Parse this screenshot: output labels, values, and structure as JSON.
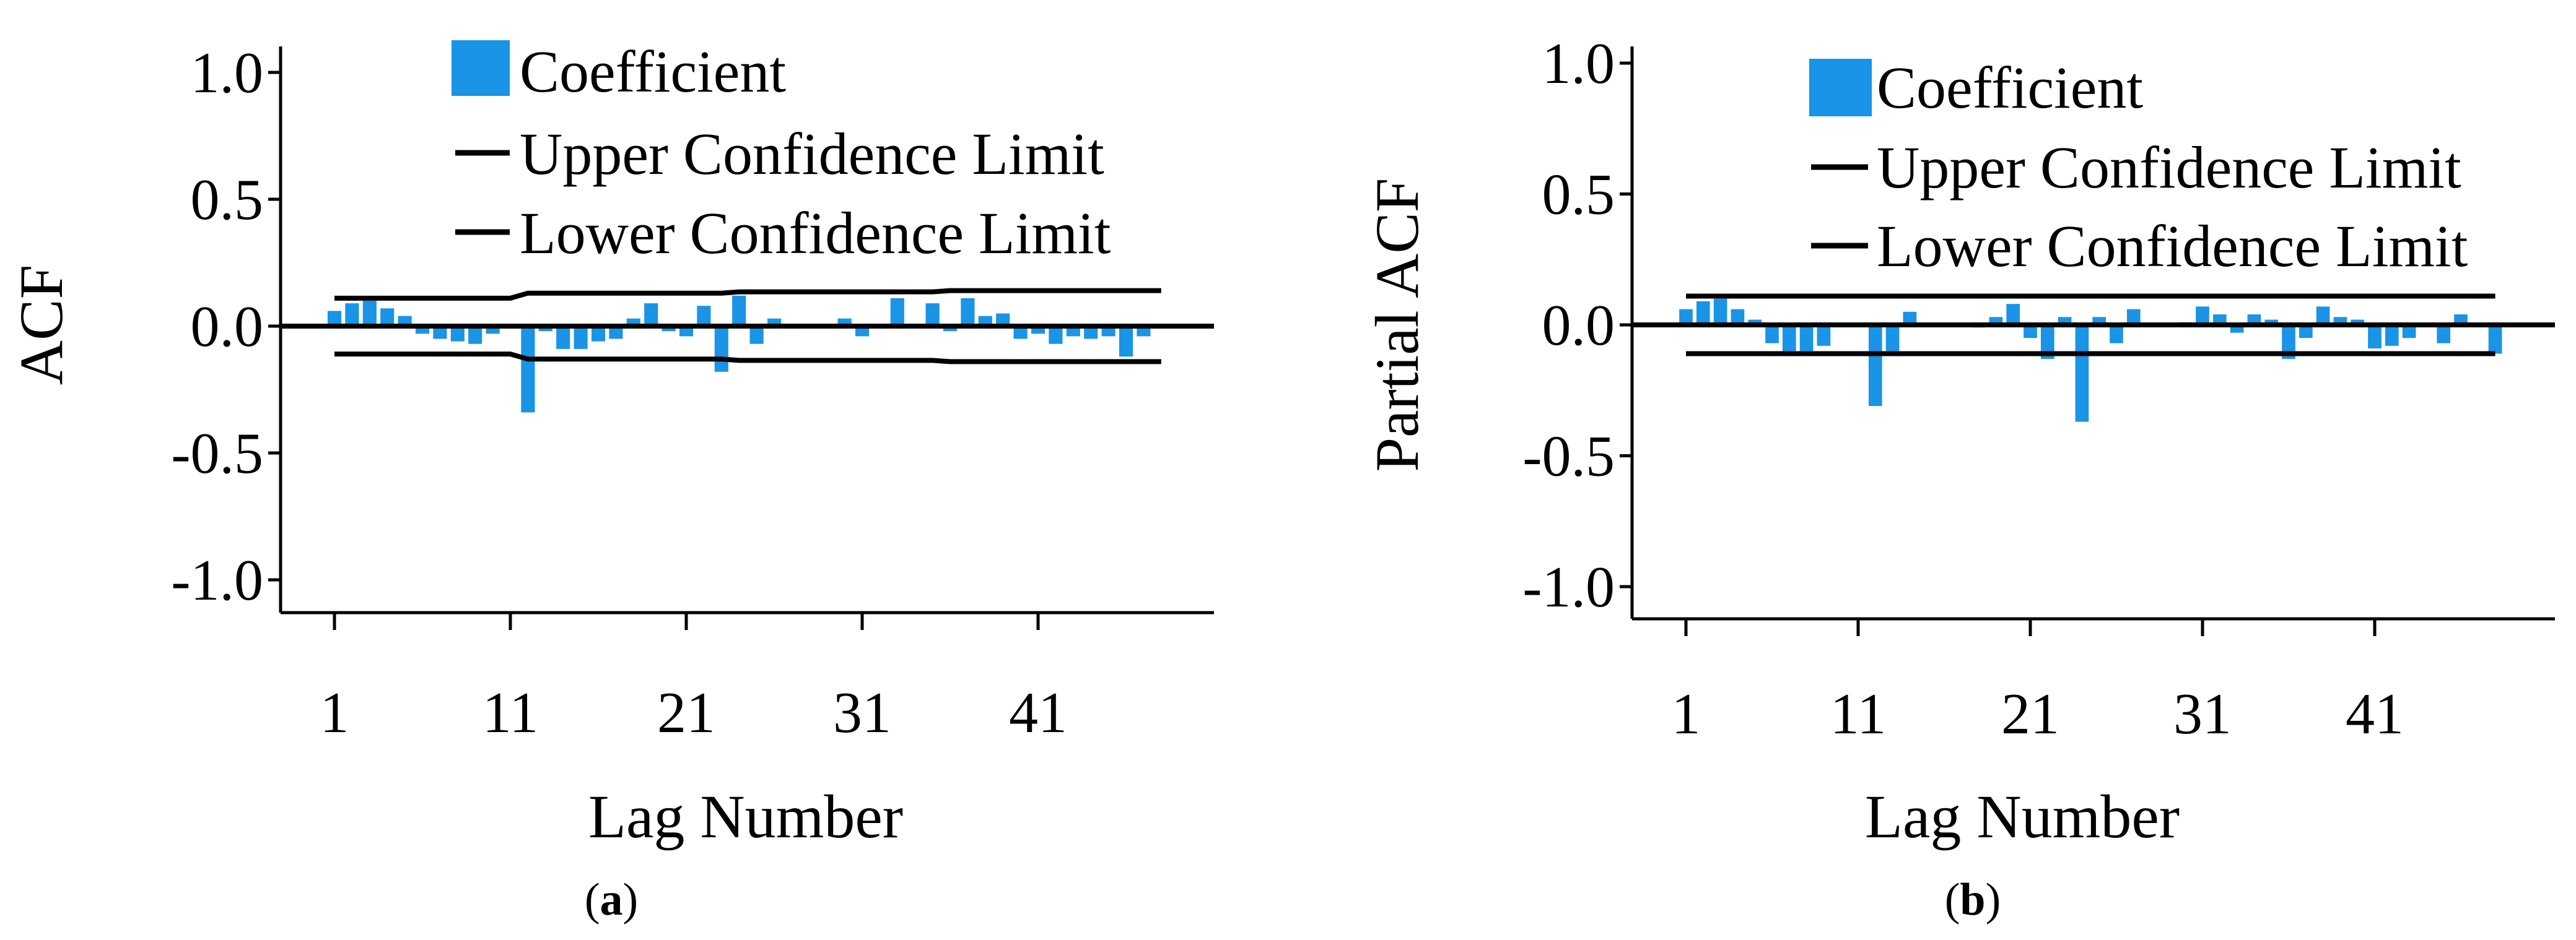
{
  "figure": {
    "captions": [
      {
        "open": "(",
        "letter": "a",
        "close": ")"
      },
      {
        "open": "(",
        "letter": "b",
        "close": ")"
      }
    ]
  },
  "colors": {
    "bar": "#1994e6",
    "line": "#000000"
  },
  "chart_data": [
    {
      "type": "bar",
      "title": "",
      "xlabel": "Lag Number",
      "ylabel": "ACF",
      "ylim": [
        -1.0,
        1.0
      ],
      "xlim": [
        1,
        48
      ],
      "yticks": [
        "1.0",
        "0.5",
        "0.0",
        "-0.5",
        "-1.0"
      ],
      "ytick_values": [
        1.0,
        0.5,
        0.0,
        -0.5,
        -1.0
      ],
      "xticks": [
        "1",
        "11",
        "21",
        "31",
        "41"
      ],
      "xtick_values": [
        1,
        11,
        21,
        31,
        41
      ],
      "legend": {
        "placement": "top",
        "entries": [
          {
            "label": "Coefficient",
            "kind": "bar"
          },
          {
            "label": "Upper Confidence Limit",
            "kind": "line"
          },
          {
            "label": "Lower Confidence Limit",
            "kind": "line"
          }
        ]
      },
      "lags": [
        1,
        2,
        3,
        4,
        5,
        6,
        7,
        8,
        9,
        10,
        11,
        12,
        13,
        14,
        15,
        16,
        17,
        18,
        19,
        20,
        21,
        22,
        23,
        24,
        25,
        26,
        27,
        28,
        29,
        30,
        31,
        32,
        33,
        34,
        35,
        36,
        37,
        38,
        39,
        40,
        41,
        42,
        43,
        44,
        45,
        46,
        47,
        48
      ],
      "series": [
        {
          "name": "Coefficient",
          "values": [
            0.06,
            0.09,
            0.1,
            0.07,
            0.04,
            -0.03,
            -0.05,
            -0.06,
            -0.07,
            -0.03,
            -0.01,
            -0.34,
            -0.02,
            -0.09,
            -0.09,
            -0.06,
            -0.05,
            0.03,
            0.09,
            -0.02,
            -0.04,
            0.08,
            -0.18,
            0.12,
            -0.07,
            0.03,
            -0.01,
            0.0,
            0.0,
            0.03,
            -0.04,
            0.0,
            0.11,
            0.0,
            0.09,
            -0.02,
            0.11,
            0.04,
            0.05,
            -0.05,
            -0.03,
            -0.07,
            -0.04,
            -0.05,
            -0.04,
            -0.12,
            -0.04,
            0.0
          ]
        },
        {
          "name": "Upper Confidence Limit",
          "values": [
            0.11,
            0.11,
            0.11,
            0.11,
            0.11,
            0.11,
            0.11,
            0.11,
            0.11,
            0.11,
            0.11,
            0.13,
            0.13,
            0.13,
            0.13,
            0.13,
            0.13,
            0.13,
            0.13,
            0.13,
            0.13,
            0.13,
            0.13,
            0.135,
            0.135,
            0.135,
            0.135,
            0.135,
            0.135,
            0.135,
            0.135,
            0.135,
            0.135,
            0.135,
            0.135,
            0.14,
            0.14,
            0.14,
            0.14,
            0.14,
            0.14,
            0.14,
            0.14,
            0.14,
            0.14,
            0.14,
            0.14,
            0.14
          ]
        },
        {
          "name": "Lower Confidence Limit",
          "values": [
            -0.11,
            -0.11,
            -0.11,
            -0.11,
            -0.11,
            -0.11,
            -0.11,
            -0.11,
            -0.11,
            -0.11,
            -0.11,
            -0.13,
            -0.13,
            -0.13,
            -0.13,
            -0.13,
            -0.13,
            -0.13,
            -0.13,
            -0.13,
            -0.13,
            -0.13,
            -0.13,
            -0.135,
            -0.135,
            -0.135,
            -0.135,
            -0.135,
            -0.135,
            -0.135,
            -0.135,
            -0.135,
            -0.135,
            -0.135,
            -0.135,
            -0.14,
            -0.14,
            -0.14,
            -0.14,
            -0.14,
            -0.14,
            -0.14,
            -0.14,
            -0.14,
            -0.14,
            -0.14,
            -0.14,
            -0.14
          ]
        }
      ]
    },
    {
      "type": "bar",
      "title": "",
      "xlabel": "Lag Number",
      "ylabel": "Partial ACF",
      "ylim": [
        -1.0,
        1.0
      ],
      "xlim": [
        1,
        48
      ],
      "yticks": [
        "1.0",
        "0.5",
        "0.0",
        "-0.5",
        "-1.0"
      ],
      "ytick_values": [
        1.0,
        0.5,
        0.0,
        -0.5,
        -1.0
      ],
      "xticks": [
        "1",
        "11",
        "21",
        "31",
        "41"
      ],
      "xtick_values": [
        1,
        11,
        21,
        31,
        41
      ],
      "legend": {
        "placement": "top",
        "entries": [
          {
            "label": "Coefficient",
            "kind": "bar"
          },
          {
            "label": "Upper Confidence Limit",
            "kind": "line"
          },
          {
            "label": "Lower Confidence Limit",
            "kind": "line"
          }
        ]
      },
      "lags": [
        1,
        2,
        3,
        4,
        5,
        6,
        7,
        8,
        9,
        10,
        11,
        12,
        13,
        14,
        15,
        16,
        17,
        18,
        19,
        20,
        21,
        22,
        23,
        24,
        25,
        26,
        27,
        28,
        29,
        30,
        31,
        32,
        33,
        34,
        35,
        36,
        37,
        38,
        39,
        40,
        41,
        42,
        43,
        44,
        45,
        46,
        47,
        48
      ],
      "series": [
        {
          "name": "Coefficient",
          "values": [
            0.06,
            0.09,
            0.1,
            0.06,
            0.02,
            -0.07,
            -0.1,
            -0.1,
            -0.08,
            0.0,
            0.0,
            -0.31,
            -0.1,
            0.05,
            0.0,
            0.0,
            0.0,
            -0.01,
            0.03,
            0.08,
            -0.05,
            -0.13,
            0.03,
            -0.37,
            0.03,
            -0.07,
            0.06,
            0.0,
            0.0,
            0.01,
            0.07,
            0.04,
            -0.03,
            0.04,
            0.02,
            -0.13,
            -0.05,
            0.07,
            0.03,
            0.02,
            -0.09,
            -0.08,
            -0.05,
            0.0,
            -0.07,
            0.04,
            0.0,
            -0.11
          ]
        },
        {
          "name": "Upper Confidence Limit",
          "values": [
            0.11,
            0.11,
            0.11,
            0.11,
            0.11,
            0.11,
            0.11,
            0.11,
            0.11,
            0.11,
            0.11,
            0.11,
            0.11,
            0.11,
            0.11,
            0.11,
            0.11,
            0.11,
            0.11,
            0.11,
            0.11,
            0.11,
            0.11,
            0.11,
            0.11,
            0.11,
            0.11,
            0.11,
            0.11,
            0.11,
            0.11,
            0.11,
            0.11,
            0.11,
            0.11,
            0.11,
            0.11,
            0.11,
            0.11,
            0.11,
            0.11,
            0.11,
            0.11,
            0.11,
            0.11,
            0.11,
            0.11,
            0.11
          ]
        },
        {
          "name": "Lower Confidence Limit",
          "values": [
            -0.11,
            -0.11,
            -0.11,
            -0.11,
            -0.11,
            -0.11,
            -0.11,
            -0.11,
            -0.11,
            -0.11,
            -0.11,
            -0.11,
            -0.11,
            -0.11,
            -0.11,
            -0.11,
            -0.11,
            -0.11,
            -0.11,
            -0.11,
            -0.11,
            -0.11,
            -0.11,
            -0.11,
            -0.11,
            -0.11,
            -0.11,
            -0.11,
            -0.11,
            -0.11,
            -0.11,
            -0.11,
            -0.11,
            -0.11,
            -0.11,
            -0.11,
            -0.11,
            -0.11,
            -0.11,
            -0.11,
            -0.11,
            -0.11,
            -0.11,
            -0.11,
            -0.11,
            -0.11,
            -0.11,
            -0.11
          ]
        }
      ]
    }
  ]
}
